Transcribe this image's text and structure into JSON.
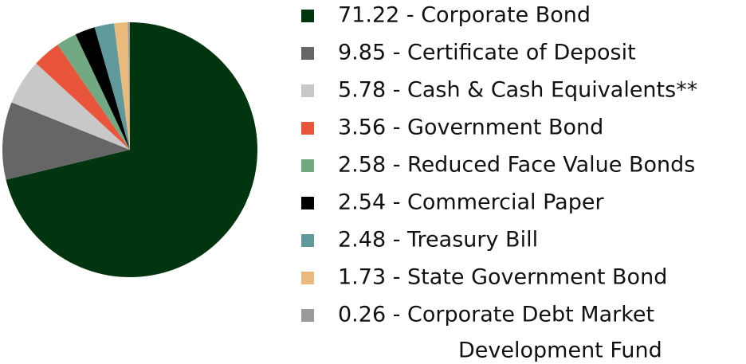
{
  "chart_data": {
    "type": "pie",
    "values": [
      71.22,
      9.85,
      5.78,
      3.56,
      2.58,
      2.54,
      2.48,
      1.73,
      0.26
    ],
    "value_labels": [
      "71.22 - Corporate Bond",
      "9.85 - Certificate of Deposit",
      "5.78 - Cash & Cash Equivalents**",
      "3.56 - Government Bond",
      "2.58 - Reduced Face Value Bonds",
      "2.54 - Commercial Paper",
      "2.48 - Treasury Bill",
      "1.73 - State Government Bond",
      [
        "0.26 - Corporate Debt Market",
        "Development Fund"
      ]
    ],
    "colors": [
      "#01350f",
      "#666666",
      "#c8c8c8",
      "#e9553b",
      "#72a882",
      "#000000",
      "#5f999b",
      "#e9ba7c",
      "#9a9a9a"
    ]
  }
}
